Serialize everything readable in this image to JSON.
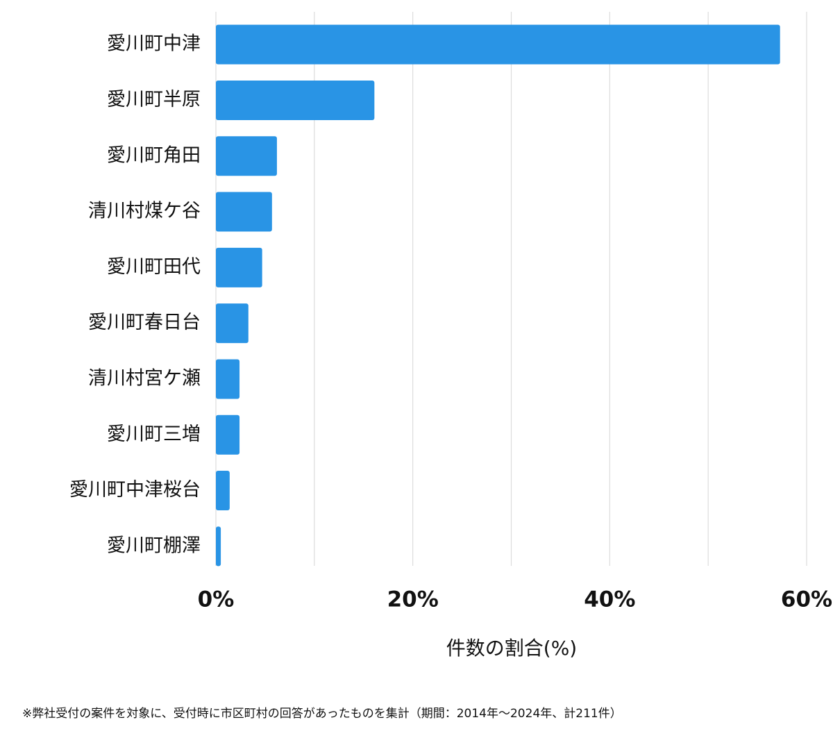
{
  "chart_data": {
    "type": "bar",
    "orientation": "horizontal",
    "categories": [
      "愛川町中津",
      "愛川町半原",
      "愛川町角田",
      "清川村煤ケ谷",
      "愛川町田代",
      "愛川町春日台",
      "清川村宮ケ瀬",
      "愛川町三増",
      "愛川町中津桜台",
      "愛川町棚澤"
    ],
    "values": [
      57.3,
      16.1,
      6.2,
      5.7,
      4.7,
      3.3,
      2.4,
      2.4,
      1.4,
      0.5
    ],
    "color": "#2994e5",
    "xlim": [
      0,
      60
    ],
    "xticks": [
      {
        "value": 0,
        "label": "0%"
      },
      {
        "value": 20,
        "label": "20%"
      },
      {
        "value": 40,
        "label": "40%"
      },
      {
        "value": 60,
        "label": "60%"
      }
    ],
    "minor_xticks": [
      10,
      30,
      50
    ],
    "grid": true,
    "xlabel": "件数の割合(%)",
    "footnote": "※弊社受付の案件を対象に、受付時に市区町村の回答があったものを集計（期間：2014年〜2024年、計211件）"
  }
}
